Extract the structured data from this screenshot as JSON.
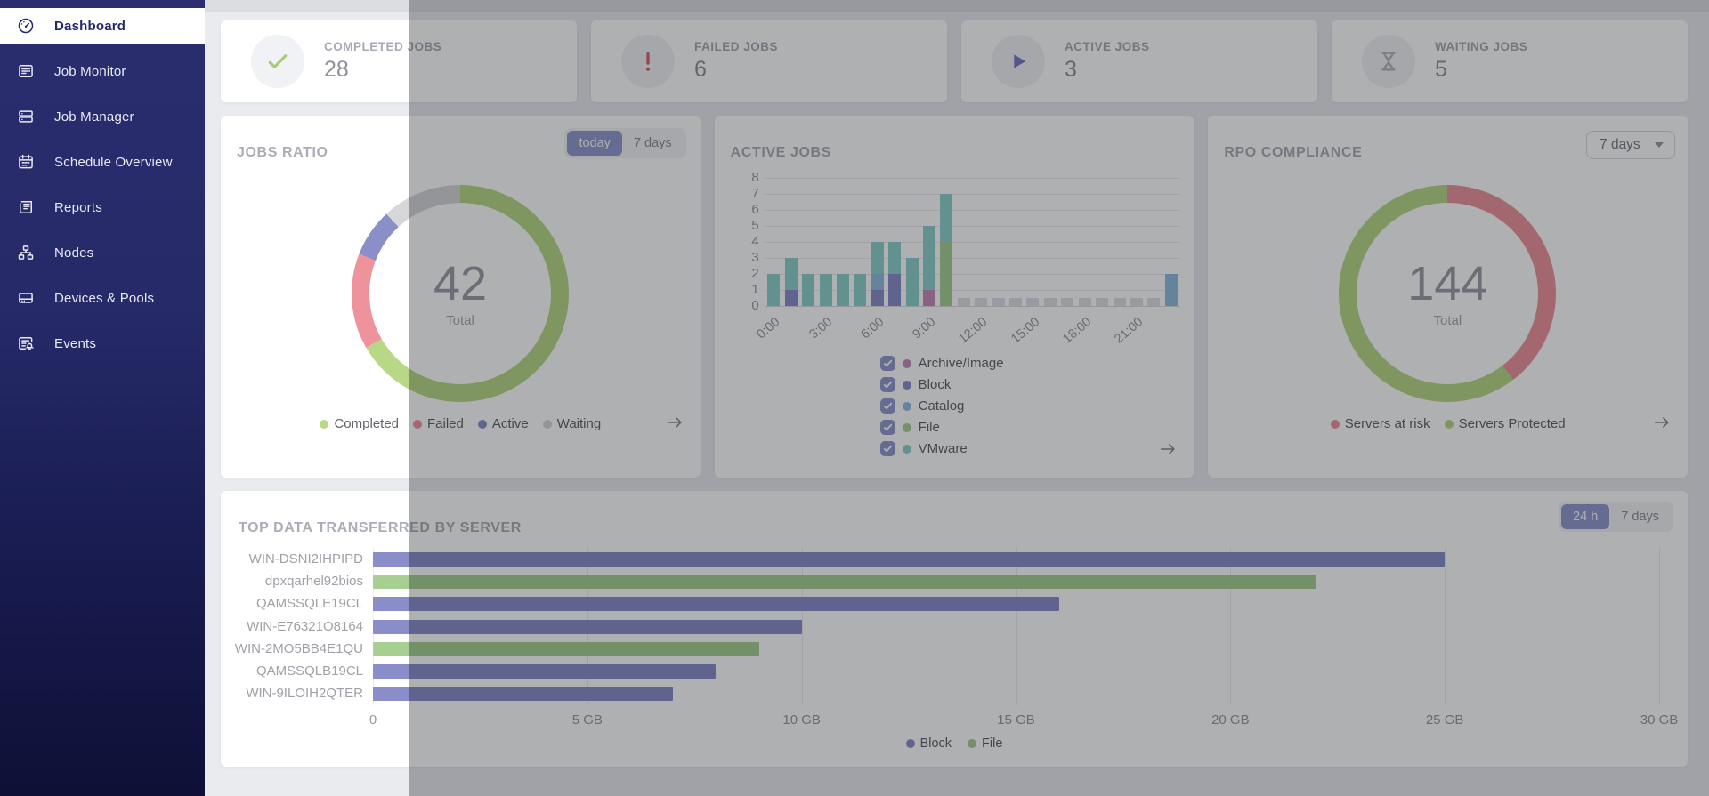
{
  "sidebar": {
    "items": [
      {
        "label": "Dashboard",
        "icon": "dashboard-gauge-icon",
        "active": true
      },
      {
        "label": "Job Monitor",
        "icon": "job-monitor-icon",
        "active": false
      },
      {
        "label": "Job Manager",
        "icon": "job-manager-icon",
        "active": false
      },
      {
        "label": "Schedule Overview",
        "icon": "schedule-calendar-icon",
        "active": false
      },
      {
        "label": "Reports",
        "icon": "reports-icon",
        "active": false
      },
      {
        "label": "Nodes",
        "icon": "nodes-icon",
        "active": false
      },
      {
        "label": "Devices & Pools",
        "icon": "devices-pools-icon",
        "active": false
      },
      {
        "label": "Events",
        "icon": "events-icon",
        "active": false
      }
    ]
  },
  "stat_cards": [
    {
      "label": "COMPLETED JOBS",
      "value": "28",
      "icon": "check-icon",
      "icon_color": "#a8cc74"
    },
    {
      "label": "FAILED JOBS",
      "value": "6",
      "icon": "exclamation-icon",
      "icon_color": "#d9606c"
    },
    {
      "label": "ACTIVE JOBS",
      "value": "3",
      "icon": "play-icon",
      "icon_color": "#7479c8"
    },
    {
      "label": "WAITING JOBS",
      "value": "5",
      "icon": "hourglass-icon",
      "icon_color": "#b5b7be"
    }
  ],
  "jobs_ratio_card": {
    "toggle": [
      "today",
      "7 days"
    ],
    "active_index": 0
  },
  "rpo_card": {
    "select_value": "7 days"
  },
  "top_data_card": {
    "toggle": [
      "24 h",
      "7 days"
    ],
    "active_index": 0
  },
  "colors": {
    "accent_indigo": "#9398cf",
    "status_green": "#b9d887",
    "status_red": "#ee939c",
    "status_indigo": "#8a8fc7",
    "status_gray": "#d7d7da"
  },
  "chart_data": [
    {
      "id": "jobs_ratio",
      "type": "pie",
      "title": "JOBS RATIO",
      "total": 42,
      "center_label": "Total",
      "legend_position": "bottom",
      "slices": [
        {
          "label": "Completed",
          "value": 28,
          "color": "#b9d887"
        },
        {
          "label": "Failed",
          "value": 6,
          "color": "#ee939c"
        },
        {
          "label": "Active",
          "value": 3,
          "color": "#8a8fc7"
        },
        {
          "label": "Waiting",
          "value": 5,
          "color": "#d7d7da"
        }
      ]
    },
    {
      "id": "active_jobs",
      "type": "bar",
      "stacked": true,
      "title": "ACTIVE JOBS",
      "ylim": [
        0,
        8
      ],
      "y_ticks": [
        0,
        1,
        2,
        3,
        4,
        5,
        6,
        7,
        8
      ],
      "x_tick_labels": [
        "0:00",
        "3:00",
        "6:00",
        "9:00",
        "12:00",
        "15:00",
        "18:00",
        "21:00"
      ],
      "x_tick_slots": [
        0,
        3,
        6,
        9,
        12,
        15,
        18,
        21
      ],
      "slots": 24,
      "no_data_placeholder_slots": [
        11,
        12,
        13,
        14,
        15,
        16,
        17,
        18,
        19,
        20,
        21,
        22
      ],
      "series": [
        {
          "name": "Archive/Image",
          "color": "#c589ba",
          "values": [
            0,
            0,
            0,
            0,
            0,
            0,
            0,
            0,
            0,
            1,
            0,
            0,
            0,
            0,
            0,
            0,
            0,
            0,
            0,
            0,
            0,
            0,
            0,
            0
          ]
        },
        {
          "name": "Block",
          "color": "#898dc9",
          "values": [
            0,
            1,
            0,
            0,
            0,
            0,
            1,
            2,
            0,
            0,
            0,
            0,
            0,
            0,
            0,
            0,
            0,
            0,
            0,
            0,
            0,
            0,
            0,
            0
          ]
        },
        {
          "name": "Catalog",
          "color": "#92bce2",
          "values": [
            0,
            0,
            0,
            0,
            0,
            0,
            1,
            0,
            0,
            0,
            0,
            0,
            0,
            0,
            0,
            0,
            0,
            0,
            0,
            0,
            0,
            0,
            0,
            2
          ]
        },
        {
          "name": "File",
          "color": "#a7cf92",
          "values": [
            0,
            0,
            0,
            0,
            0,
            0,
            0,
            0,
            0,
            0,
            4,
            0,
            0,
            0,
            0,
            0,
            0,
            0,
            0,
            0,
            0,
            0,
            0,
            0
          ]
        },
        {
          "name": "VMware",
          "color": "#8ed1cb",
          "values": [
            2,
            2,
            2,
            2,
            2,
            2,
            2,
            2,
            3,
            4,
            3,
            0,
            0,
            0,
            0,
            0,
            0,
            0,
            0,
            0,
            0,
            0,
            0,
            0
          ]
        }
      ]
    },
    {
      "id": "rpo_compliance",
      "type": "pie",
      "title": "RPO COMPLIANCE",
      "total": 144,
      "center_label": "Total",
      "legend_position": "bottom",
      "note": "slice split estimated from arc angles",
      "slices": [
        {
          "label": "Servers at risk",
          "value": 57,
          "color": "#ee939c"
        },
        {
          "label": "Servers Protected",
          "value": 87,
          "color": "#b9d887"
        }
      ]
    },
    {
      "id": "top_data_transferred",
      "type": "bar",
      "orientation": "horizontal",
      "title": "TOP DATA TRANSFERRED BY SERVER",
      "categories": [
        "WIN-DSNI2IHPIPD",
        "dpxqarhel92bios",
        "QAMSSQLE19CL",
        "WIN-E76321O8164",
        "WIN-2MO5BB4E1QU",
        "QAMSSQLB19CL",
        "WIN-9ILOIH2QTER"
      ],
      "values_gb": [
        25,
        22,
        16,
        10,
        9,
        8,
        7
      ],
      "series_by_row": [
        "Block",
        "File",
        "Block",
        "Block",
        "File",
        "Block",
        "Block"
      ],
      "series_colors": {
        "Block": "#898dc9",
        "File": "#a7cf92"
      },
      "xlim_gb": [
        0,
        30
      ],
      "x_tick_labels": [
        "0",
        "5 GB",
        "10 GB",
        "15 GB",
        "20 GB",
        "25 GB",
        "30 GB"
      ],
      "legend": [
        "Block",
        "File"
      ]
    }
  ]
}
